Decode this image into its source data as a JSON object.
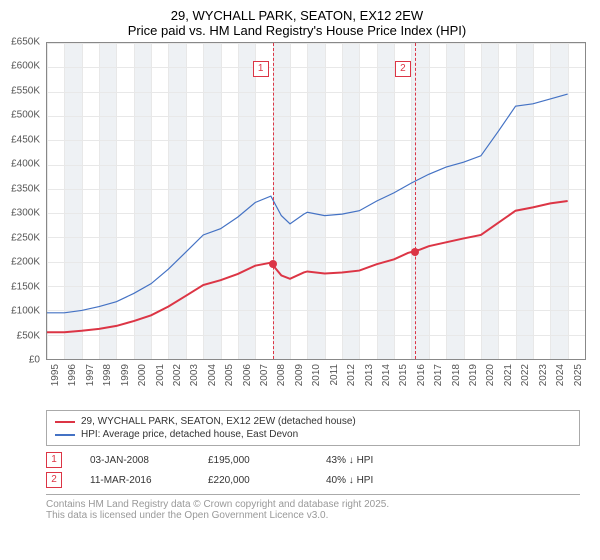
{
  "title": "29, WYCHALL PARK, SEATON, EX12 2EW",
  "subtitle": "Price paid vs. HM Land Registry's House Price Index (HPI)",
  "chart": {
    "type": "line",
    "x_years": [
      1995,
      1996,
      1997,
      1998,
      1999,
      2000,
      2001,
      2002,
      2003,
      2004,
      2005,
      2006,
      2007,
      2008,
      2009,
      2010,
      2011,
      2012,
      2013,
      2014,
      2015,
      2016,
      2017,
      2018,
      2019,
      2020,
      2021,
      2022,
      2023,
      2024,
      2025
    ],
    "xlim": [
      1995,
      2026
    ],
    "ylim": [
      0,
      650000
    ],
    "ytick_step": 50000,
    "ylabels": [
      "£0",
      "£50K",
      "£100K",
      "£150K",
      "£200K",
      "£250K",
      "£300K",
      "£350K",
      "£400K",
      "£450K",
      "£500K",
      "£550K",
      "£600K",
      "£650K"
    ],
    "grid_color": "#e8e8e8",
    "band_color": "#eef1f4",
    "background": "#ffffff",
    "series": [
      {
        "name": "property",
        "label": "29, WYCHALL PARK, SEATON, EX12 2EW (detached house)",
        "color": "#dc3545",
        "width": 2,
        "data": [
          [
            1995,
            55000
          ],
          [
            1996,
            55000
          ],
          [
            1997,
            58000
          ],
          [
            1998,
            62000
          ],
          [
            1999,
            68000
          ],
          [
            2000,
            78000
          ],
          [
            2001,
            90000
          ],
          [
            2002,
            108000
          ],
          [
            2003,
            130000
          ],
          [
            2004,
            152000
          ],
          [
            2005,
            162000
          ],
          [
            2006,
            175000
          ],
          [
            2007,
            192000
          ],
          [
            2007.9,
            198000
          ],
          [
            2008.5,
            172000
          ],
          [
            2009,
            165000
          ],
          [
            2009.8,
            178000
          ],
          [
            2010,
            180000
          ],
          [
            2011,
            176000
          ],
          [
            2012,
            178000
          ],
          [
            2013,
            182000
          ],
          [
            2014,
            195000
          ],
          [
            2015,
            205000
          ],
          [
            2015.8,
            218000
          ],
          [
            2016.5,
            225000
          ],
          [
            2017,
            232000
          ],
          [
            2018,
            240000
          ],
          [
            2019,
            248000
          ],
          [
            2020,
            255000
          ],
          [
            2021,
            280000
          ],
          [
            2022,
            305000
          ],
          [
            2023,
            312000
          ],
          [
            2024,
            320000
          ],
          [
            2025,
            325000
          ]
        ]
      },
      {
        "name": "hpi",
        "label": "HPI: Average price, detached house, East Devon",
        "color": "#4472c4",
        "width": 1.2,
        "data": [
          [
            1995,
            95000
          ],
          [
            1996,
            95000
          ],
          [
            1997,
            100000
          ],
          [
            1998,
            108000
          ],
          [
            1999,
            118000
          ],
          [
            2000,
            135000
          ],
          [
            2001,
            155000
          ],
          [
            2002,
            185000
          ],
          [
            2003,
            220000
          ],
          [
            2004,
            255000
          ],
          [
            2005,
            268000
          ],
          [
            2006,
            292000
          ],
          [
            2007,
            322000
          ],
          [
            2007.9,
            335000
          ],
          [
            2008.5,
            295000
          ],
          [
            2009,
            278000
          ],
          [
            2009.8,
            298000
          ],
          [
            2010,
            302000
          ],
          [
            2011,
            295000
          ],
          [
            2012,
            298000
          ],
          [
            2013,
            305000
          ],
          [
            2014,
            325000
          ],
          [
            2015,
            342000
          ],
          [
            2016,
            362000
          ],
          [
            2017,
            380000
          ],
          [
            2018,
            395000
          ],
          [
            2019,
            405000
          ],
          [
            2020,
            418000
          ],
          [
            2021,
            468000
          ],
          [
            2022,
            520000
          ],
          [
            2023,
            525000
          ],
          [
            2024,
            535000
          ],
          [
            2025,
            545000
          ]
        ]
      }
    ],
    "markers": [
      {
        "idx": "1",
        "x": 2008.0,
        "y": 195000
      },
      {
        "idx": "2",
        "x": 2016.2,
        "y": 220000
      }
    ]
  },
  "legend": {
    "items": [
      {
        "color": "#dc3545",
        "label": "29, WYCHALL PARK, SEATON, EX12 2EW (detached house)"
      },
      {
        "color": "#4472c4",
        "label": "HPI: Average price, detached house, East Devon"
      }
    ]
  },
  "transactions": [
    {
      "idx": "1",
      "date": "03-JAN-2008",
      "price": "£195,000",
      "pct": "43%",
      "arrow": "↓",
      "ref": "HPI"
    },
    {
      "idx": "2",
      "date": "11-MAR-2016",
      "price": "£220,000",
      "pct": "40%",
      "arrow": "↓",
      "ref": "HPI"
    }
  ],
  "footer": {
    "line1": "Contains HM Land Registry data © Crown copyright and database right 2025.",
    "line2": "This data is licensed under the Open Government Licence v3.0."
  }
}
